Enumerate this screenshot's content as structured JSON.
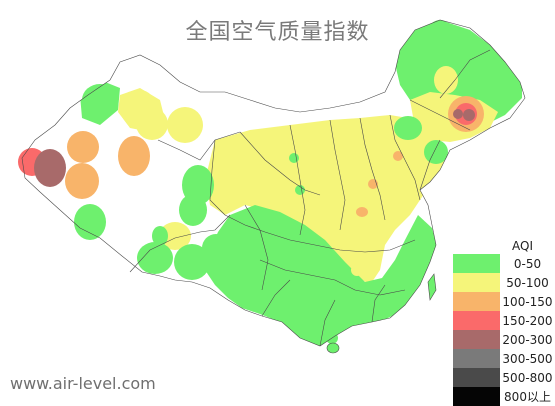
{
  "title": "全国空气质量指数",
  "source": "www.air-level.com",
  "legend": {
    "title": "AQI",
    "items": [
      {
        "label": "0-50",
        "color": "#6ef06e"
      },
      {
        "label": "50-100",
        "color": "#f5f57a"
      },
      {
        "label": "100-150",
        "color": "#f8b46a"
      },
      {
        "label": "150-200",
        "color": "#fa6a6a"
      },
      {
        "label": "200-300",
        "color": "#a86a6a"
      },
      {
        "label": "300-500",
        "color": "#7a7a7a"
      },
      {
        "label": "500-800",
        "color": "#4a4a4a"
      },
      {
        "label": "800以上",
        "color": "#050505"
      }
    ]
  },
  "colors": {
    "good": "#6ef06e",
    "moderate": "#f5f57a",
    "sensitive": "#f8b46a",
    "unhealthy": "#fa6a6a",
    "very_unhealthy": "#a86a6a",
    "border": "#4a4a4a"
  }
}
